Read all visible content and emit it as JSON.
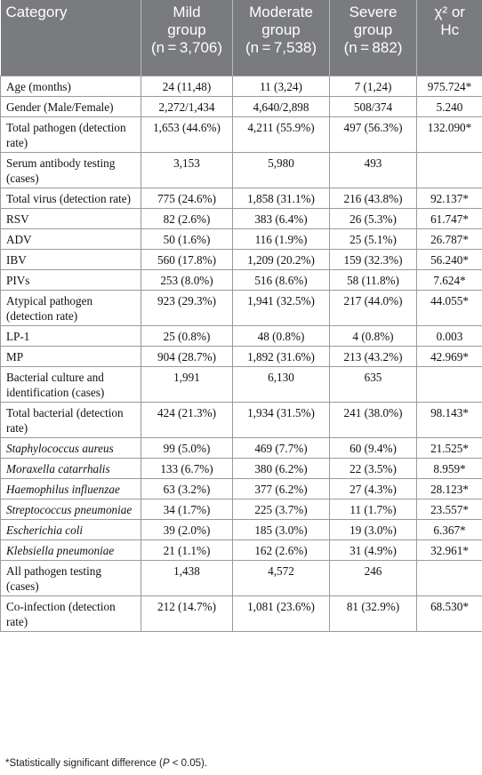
{
  "headers": [
    {
      "lines": [
        "Category"
      ]
    },
    {
      "lines": [
        "Mild",
        "group",
        "(n = 3,706)"
      ]
    },
    {
      "lines": [
        "Moderate",
        "group",
        "(n = 7,538)"
      ]
    },
    {
      "lines": [
        "Severe",
        "group",
        "(n = 882)"
      ]
    },
    {
      "lines": [
        "χ² or",
        "Hc"
      ]
    }
  ],
  "rows": [
    {
      "label": "Age (months)",
      "italic": false,
      "mild": "24 (11,48)",
      "moderate": "11 (3,24)",
      "severe": "7 (1,24)",
      "stat": "975.724*"
    },
    {
      "label": "Gender (Male/Female)",
      "italic": false,
      "mild": "2,272/1,434",
      "moderate": "4,640/2,898",
      "severe": "508/374",
      "stat": "5.240"
    },
    {
      "label": "Total pathogen (detection rate)",
      "italic": false,
      "mild": "1,653 (44.6%)",
      "moderate": "4,211 (55.9%)",
      "severe": "497 (56.3%)",
      "stat": "132.090*"
    },
    {
      "label": "Serum antibody testing (cases)",
      "italic": false,
      "mild": "3,153",
      "moderate": "5,980",
      "severe": "493",
      "stat": ""
    },
    {
      "label": "Total virus (detection rate)",
      "italic": false,
      "mild": "775 (24.6%)",
      "moderate": "1,858 (31.1%)",
      "severe": "216 (43.8%)",
      "stat": "92.137*"
    },
    {
      "label": "RSV",
      "italic": false,
      "mild": "82 (2.6%)",
      "moderate": "383 (6.4%)",
      "severe": "26 (5.3%)",
      "stat": "61.747*"
    },
    {
      "label": "ADV",
      "italic": false,
      "mild": "50 (1.6%)",
      "moderate": "116 (1.9%)",
      "severe": "25 (5.1%)",
      "stat": "26.787*"
    },
    {
      "label": "IBV",
      "italic": false,
      "mild": "560 (17.8%)",
      "moderate": "1,209 (20.2%)",
      "severe": "159 (32.3%)",
      "stat": "56.240*"
    },
    {
      "label": "PIVs",
      "italic": false,
      "mild": "253 (8.0%)",
      "moderate": "516 (8.6%)",
      "severe": "58 (11.8%)",
      "stat": "7.624*"
    },
    {
      "label": "Atypical pathogen (detection rate)",
      "italic": false,
      "mild": "923 (29.3%)",
      "moderate": "1,941 (32.5%)",
      "severe": "217 (44.0%)",
      "stat": "44.055*"
    },
    {
      "label": "LP-1",
      "italic": false,
      "mild": "25 (0.8%)",
      "moderate": "48 (0.8%)",
      "severe": "4 (0.8%)",
      "stat": "0.003"
    },
    {
      "label": "MP",
      "italic": false,
      "mild": "904 (28.7%)",
      "moderate": "1,892 (31.6%)",
      "severe": "213 (43.2%)",
      "stat": "42.969*"
    },
    {
      "label": "Bacterial culture and identification (cases)",
      "italic": false,
      "mild": "1,991",
      "moderate": "6,130",
      "severe": "635",
      "stat": ""
    },
    {
      "label": "Total bacterial (detection rate)",
      "italic": false,
      "mild": "424 (21.3%)",
      "moderate": "1,934 (31.5%)",
      "severe": "241 (38.0%)",
      "stat": "98.143*"
    },
    {
      "label": "Staphylococcus aureus",
      "italic": true,
      "mild": "99 (5.0%)",
      "moderate": "469 (7.7%)",
      "severe": "60 (9.4%)",
      "stat": "21.525*"
    },
    {
      "label": "Moraxella catarrhalis",
      "italic": true,
      "mild": "133 (6.7%)",
      "moderate": "380 (6.2%)",
      "severe": "22 (3.5%)",
      "stat": "8.959*"
    },
    {
      "label": "Haemophilus influenzae",
      "italic": true,
      "mild": "63 (3.2%)",
      "moderate": "377 (6.2%)",
      "severe": "27 (4.3%)",
      "stat": "28.123*"
    },
    {
      "label": "Streptococcus pneumoniae",
      "italic": true,
      "mild": "34 (1.7%)",
      "moderate": "225 (3.7%)",
      "severe": "11 (1.7%)",
      "stat": "23.557*"
    },
    {
      "label": "Escherichia coli",
      "italic": true,
      "mild": "39 (2.0%)",
      "moderate": "185 (3.0%)",
      "severe": "19 (3.0%)",
      "stat": "6.367*"
    },
    {
      "label": "Klebsiella pneumoniae",
      "italic": true,
      "mild": "21 (1.1%)",
      "moderate": "162 (2.6%)",
      "severe": "31 (4.9%)",
      "stat": "32.961*"
    },
    {
      "label": "All pathogen testing (cases)",
      "italic": false,
      "mild": "1,438",
      "moderate": "4,572",
      "severe": "246",
      "stat": ""
    },
    {
      "label": "Co-infection (detection rate)",
      "italic": false,
      "mild": "212 (14.7%)",
      "moderate": "1,081 (23.6%)",
      "severe": "81 (32.9%)",
      "stat": "68.530*"
    }
  ],
  "footnote": {
    "pre": "*Statistically significant difference (",
    "p": "P",
    "post": " < 0.05)."
  }
}
